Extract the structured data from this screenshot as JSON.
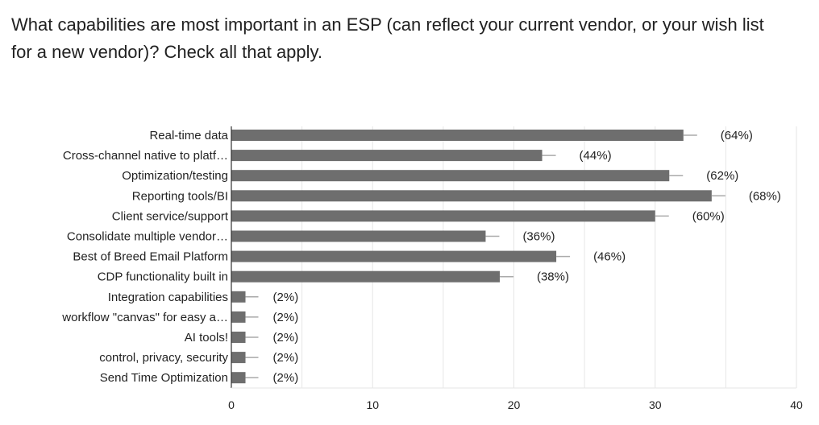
{
  "question": {
    "title": "What capabilities are most important in an ESP (can reflect your current vendor, or your wish list for a new vendor)? Check all that apply."
  },
  "chart_data": {
    "type": "bar",
    "orientation": "horizontal",
    "categories": [
      "Real-time data",
      "Cross-channel native to platf…",
      "Optimization/testing",
      "Reporting tools/BI",
      "Client service/support",
      "Consolidate multiple vendor…",
      "Best of Breed Email Platform",
      "CDP functionality built in",
      "Integration capabilities",
      "workflow \"canvas\" for easy a…",
      "AI tools!",
      "control, privacy, security",
      "Send Time Optimization"
    ],
    "values": [
      32,
      22,
      31,
      34,
      30,
      18,
      23,
      19,
      1,
      1,
      1,
      1,
      1
    ],
    "data_labels": [
      "(64%)",
      "(44%)",
      "(62%)",
      "(68%)",
      "(60%)",
      "(36%)",
      "(46%)",
      "(38%)",
      "(2%)",
      "(2%)",
      "(2%)",
      "(2%)",
      "(2%)"
    ],
    "x_ticks": [
      0,
      10,
      20,
      30,
      40
    ],
    "xlim": [
      0,
      40
    ],
    "grid": true,
    "colors": {
      "bar": "#6e6e6e",
      "gridline": "#e6e6e6",
      "axis": "#333333",
      "label": "#222222",
      "error_bar": "#aaaaaa"
    }
  }
}
